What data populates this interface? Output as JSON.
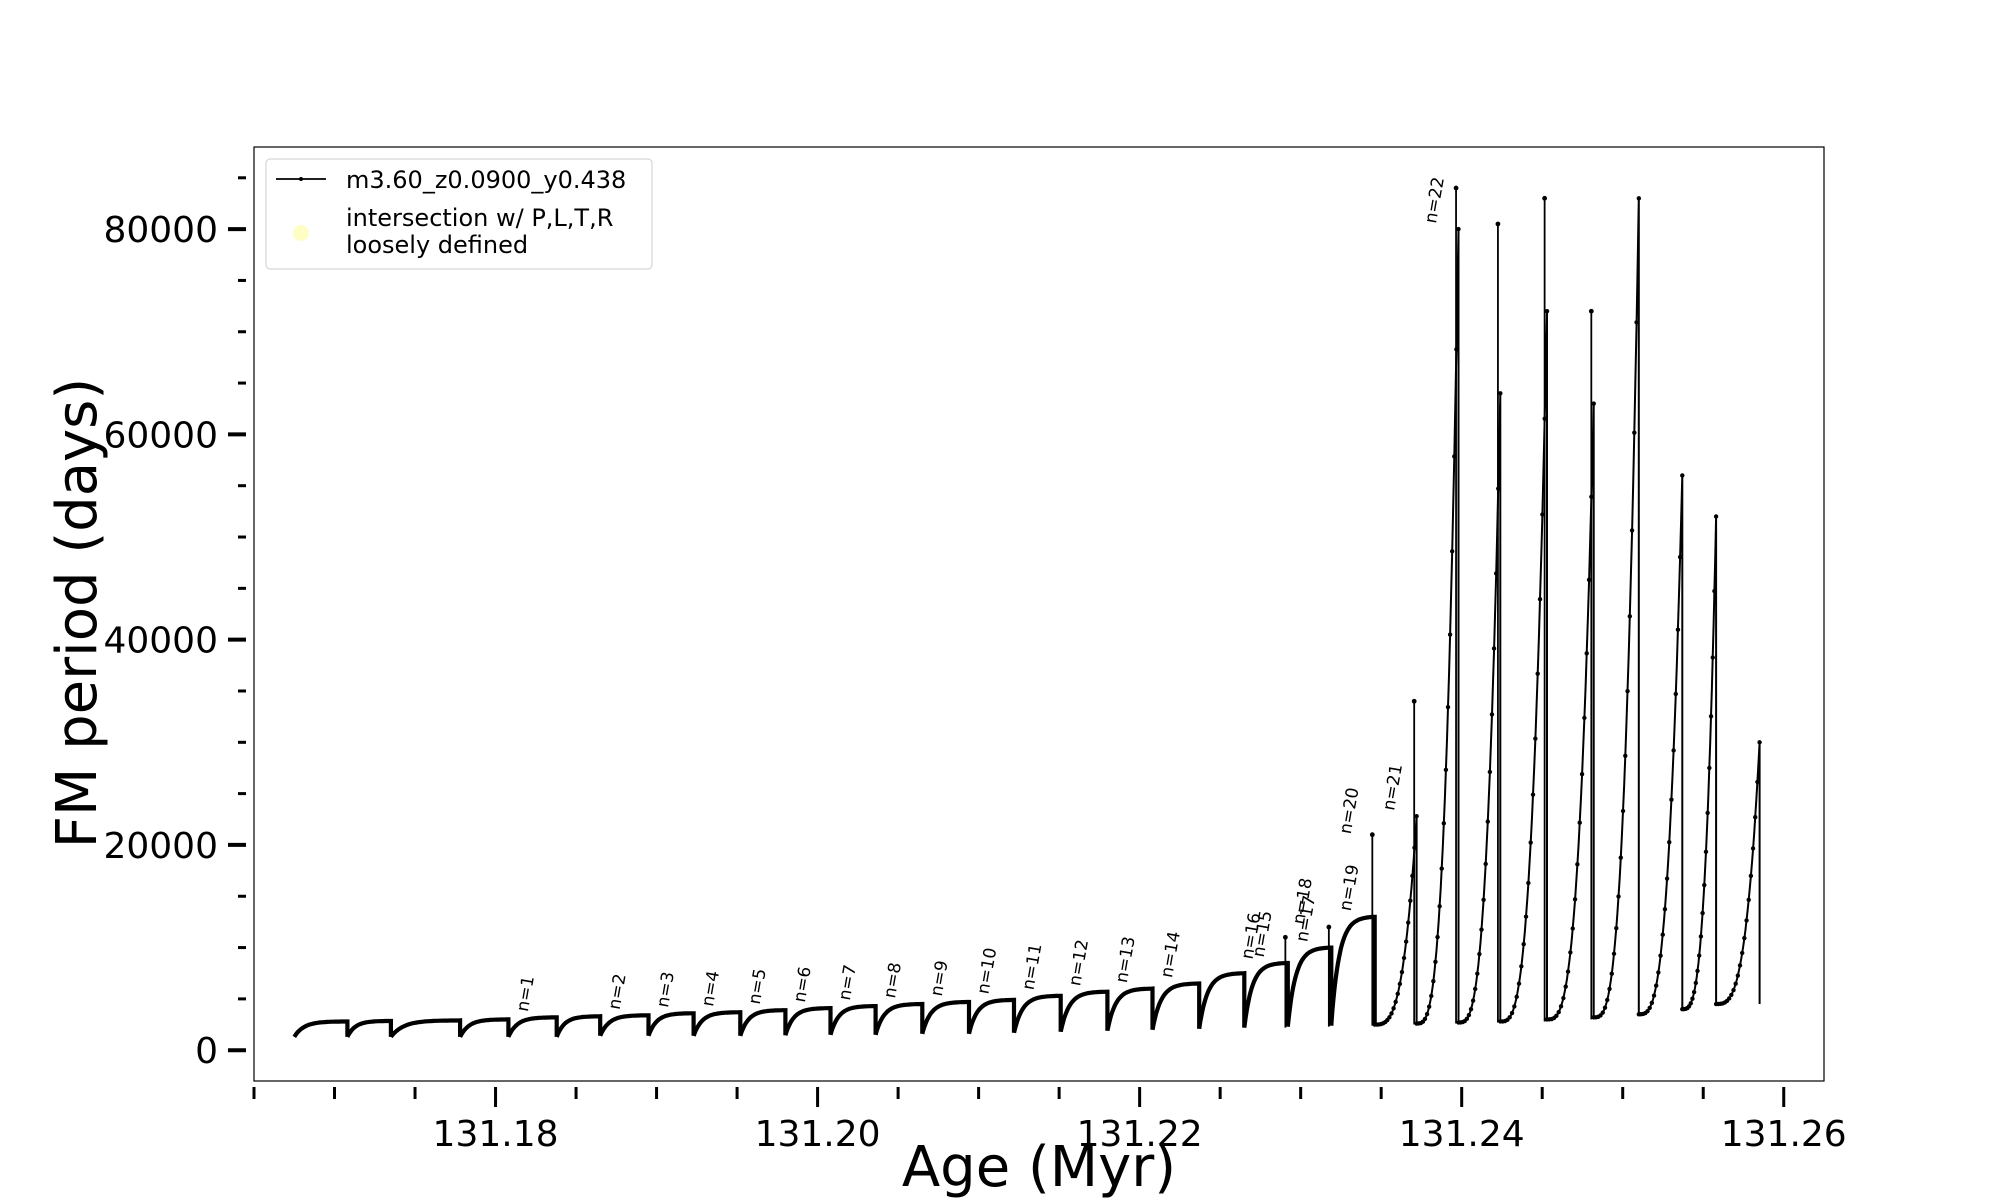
{
  "chart_data": {
    "type": "line",
    "xlabel": "Age (Myr)",
    "ylabel": "FM period (days)",
    "xlim": [
      131.165,
      131.2625
    ],
    "ylim": [
      -3000,
      88000
    ],
    "x_ticks": [
      131.18,
      131.2,
      131.22,
      131.24,
      131.26
    ],
    "x_tick_labels": [
      "131.18",
      "131.20",
      "131.22",
      "131.24",
      "131.26"
    ],
    "y_ticks": [
      0,
      20000,
      40000,
      60000,
      80000
    ],
    "y_tick_labels": [
      "0",
      "20000",
      "40000",
      "60000",
      "80000"
    ],
    "x_minor_step": 0.005,
    "y_minor_step": 5000,
    "grid": false,
    "legend_position": "top-left",
    "colors": {
      "series": "#000000",
      "intersection_marker": "#fdfdc4"
    },
    "series": [
      {
        "name": "m3.60_z0.0900_y0.438",
        "style": "line-with-small-dots"
      }
    ],
    "legend_markers": [
      {
        "name": "intersection w/ P,L,T,R loosely defined",
        "lines": [
          "intersection w/ P,L,T,R",
          "loosely defined"
        ],
        "style": "pale-yellow-circle"
      }
    ],
    "pulse_cycles": [
      {
        "start": 131.1675,
        "end": 131.1708,
        "p_start": 1300,
        "p_max": 2800,
        "spike": null,
        "label": null
      },
      {
        "start": 131.1708,
        "end": 131.1735,
        "p_start": 1300,
        "p_max": 2850,
        "spike": null,
        "label": null
      },
      {
        "start": 131.1735,
        "end": 131.1778,
        "p_start": 1300,
        "p_max": 2900,
        "spike": null,
        "label": null
      },
      {
        "start": 131.1778,
        "end": 131.1808,
        "p_start": 1300,
        "p_max": 3000,
        "spike": null,
        "label": null
      },
      {
        "start": 131.1808,
        "end": 131.1838,
        "p_start": 1300,
        "p_max": 3200,
        "spike": null,
        "label": "n=1"
      },
      {
        "start": 131.1838,
        "end": 131.1865,
        "p_start": 1300,
        "p_max": 3300,
        "spike": null,
        "label": null
      },
      {
        "start": 131.1865,
        "end": 131.1895,
        "p_start": 1400,
        "p_max": 3400,
        "spike": null,
        "label": "n=2"
      },
      {
        "start": 131.1895,
        "end": 131.1923,
        "p_start": 1400,
        "p_max": 3600,
        "spike": null,
        "label": "n=3"
      },
      {
        "start": 131.1923,
        "end": 131.1952,
        "p_start": 1400,
        "p_max": 3700,
        "spike": null,
        "label": "n=4"
      },
      {
        "start": 131.1952,
        "end": 131.198,
        "p_start": 1400,
        "p_max": 3900,
        "spike": null,
        "label": "n=5"
      },
      {
        "start": 131.198,
        "end": 131.2008,
        "p_start": 1450,
        "p_max": 4100,
        "spike": null,
        "label": "n=6"
      },
      {
        "start": 131.2008,
        "end": 131.2036,
        "p_start": 1500,
        "p_max": 4300,
        "spike": null,
        "label": "n=7"
      },
      {
        "start": 131.2036,
        "end": 131.2065,
        "p_start": 1500,
        "p_max": 4500,
        "spike": null,
        "label": "n=8"
      },
      {
        "start": 131.2065,
        "end": 131.2094,
        "p_start": 1600,
        "p_max": 4700,
        "spike": null,
        "label": "n=9"
      },
      {
        "start": 131.2094,
        "end": 131.2122,
        "p_start": 1600,
        "p_max": 4900,
        "spike": null,
        "label": "n=10"
      },
      {
        "start": 131.2122,
        "end": 131.2151,
        "p_start": 1700,
        "p_max": 5300,
        "spike": null,
        "label": "n=11"
      },
      {
        "start": 131.2151,
        "end": 131.218,
        "p_start": 1800,
        "p_max": 5700,
        "spike": null,
        "label": "n=12"
      },
      {
        "start": 131.218,
        "end": 131.2208,
        "p_start": 1900,
        "p_max": 6000,
        "spike": null,
        "label": "n=13"
      },
      {
        "start": 131.2208,
        "end": 131.2237,
        "p_start": 2000,
        "p_max": 6500,
        "spike": null,
        "label": "n=14"
      },
      {
        "start": 131.2237,
        "end": 131.2265,
        "p_start": 2100,
        "p_max": 7500,
        "spike": null,
        "label": null
      },
      {
        "start": 131.2265,
        "end": 131.2292,
        "p_start": 2200,
        "p_max": 8500,
        "spike": 11000,
        "label": "n=15"
      },
      {
        "start": 131.2292,
        "end": 131.2319,
        "p_start": 2300,
        "p_max": 10000,
        "spike": 12000,
        "label": "n=17"
      },
      {
        "start": 131.2319,
        "end": 131.2346,
        "p_start": 2400,
        "p_max": 13000,
        "spike": 21000,
        "label": "n=19"
      },
      {
        "start": 131.2346,
        "end": 131.2372,
        "p_start": 2500,
        "p_max": 22800,
        "spike": 34000,
        "label": "n=21"
      },
      {
        "start": 131.2372,
        "end": 131.2398,
        "p_start": 2600,
        "p_max": 80000,
        "spike": 84000,
        "label": "n=22"
      },
      {
        "start": 131.2398,
        "end": 131.2424,
        "p_start": 2700,
        "p_max": 64000,
        "spike": 80500,
        "label": null
      },
      {
        "start": 131.2424,
        "end": 131.2453,
        "p_start": 2800,
        "p_max": 72000,
        "spike": 83000,
        "label": null
      },
      {
        "start": 131.2453,
        "end": 131.2482,
        "p_start": 3000,
        "p_max": 63000,
        "spike": 72000,
        "label": null
      },
      {
        "start": 131.2482,
        "end": 131.251,
        "p_start": 3200,
        "p_max": 83000,
        "spike": null,
        "label": null
      },
      {
        "start": 131.251,
        "end": 131.2537,
        "p_start": 3500,
        "p_max": 56000,
        "spike": null,
        "label": null
      },
      {
        "start": 131.2537,
        "end": 131.2558,
        "p_start": 4000,
        "p_max": 52000,
        "spike": null,
        "label": null
      },
      {
        "start": 131.2558,
        "end": 131.2585,
        "p_start": 4500,
        "p_max": 30000,
        "spike": null,
        "label": null
      }
    ],
    "annotations": [
      {
        "text": "n=16",
        "x": 131.227,
        "y": 8800
      },
      {
        "text": "n=18",
        "x": 131.2302,
        "y": 12200
      },
      {
        "text": "n=20",
        "x": 131.2331,
        "y": 21000
      }
    ]
  }
}
